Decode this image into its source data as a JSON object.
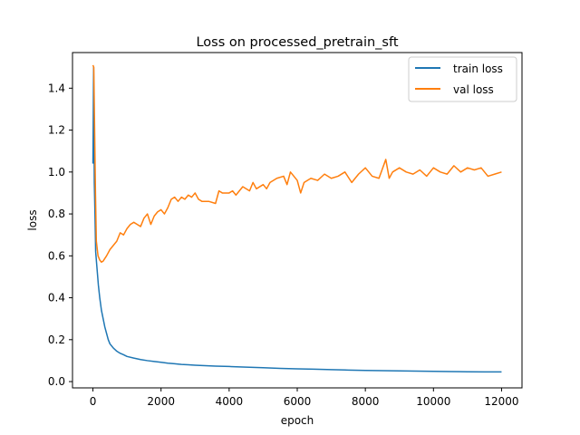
{
  "chart_data": {
    "type": "line",
    "title": "Loss on processed_pretrain_sft",
    "xlabel": "epoch",
    "ylabel": "loss",
    "xlim": [
      -600,
      12600
    ],
    "ylim": [
      -0.03,
      1.57
    ],
    "x_ticks": [
      0,
      2000,
      4000,
      6000,
      8000,
      10000,
      12000
    ],
    "y_ticks": [
      0.0,
      0.2,
      0.4,
      0.6,
      0.8,
      1.0,
      1.2,
      1.4
    ],
    "grid": false,
    "legend_position": "top-right",
    "series": [
      {
        "name": "train loss",
        "color": "#1f77b4",
        "x": [
          0,
          20,
          40,
          60,
          80,
          100,
          130,
          160,
          200,
          250,
          300,
          350,
          400,
          450,
          500,
          600,
          700,
          800,
          900,
          1000,
          1200,
          1400,
          1600,
          1800,
          2000,
          2200,
          2400,
          2600,
          2800,
          3000,
          3300,
          3600,
          4000,
          4500,
          5000,
          5500,
          6000,
          6500,
          7000,
          7500,
          8000,
          8500,
          9000,
          9500,
          10000,
          10500,
          11000,
          11500,
          12000
        ],
        "y": [
          1.04,
          1.5,
          0.95,
          0.8,
          0.62,
          0.58,
          0.52,
          0.46,
          0.4,
          0.34,
          0.3,
          0.26,
          0.23,
          0.2,
          0.18,
          0.16,
          0.145,
          0.135,
          0.128,
          0.12,
          0.112,
          0.105,
          0.1,
          0.096,
          0.092,
          0.088,
          0.085,
          0.082,
          0.08,
          0.078,
          0.076,
          0.074,
          0.072,
          0.069,
          0.066,
          0.063,
          0.061,
          0.059,
          0.057,
          0.055,
          0.053,
          0.052,
          0.051,
          0.05,
          0.049,
          0.048,
          0.047,
          0.046,
          0.046
        ]
      },
      {
        "name": "val loss",
        "color": "#ff7f0e",
        "x": [
          0,
          25,
          50,
          75,
          100,
          150,
          200,
          250,
          300,
          400,
          500,
          600,
          700,
          800,
          900,
          1000,
          1100,
          1200,
          1300,
          1400,
          1500,
          1600,
          1700,
          1800,
          1900,
          2000,
          2100,
          2200,
          2300,
          2400,
          2500,
          2600,
          2700,
          2800,
          2900,
          3000,
          3100,
          3200,
          3400,
          3600,
          3700,
          3800,
          4000,
          4100,
          4200,
          4400,
          4600,
          4700,
          4800,
          5000,
          5100,
          5200,
          5400,
          5600,
          5700,
          5800,
          6000,
          6100,
          6200,
          6400,
          6600,
          6800,
          7000,
          7200,
          7400,
          7600,
          7800,
          8000,
          8200,
          8400,
          8600,
          8700,
          8800,
          9000,
          9200,
          9400,
          9600,
          9800,
          10000,
          10200,
          10400,
          10600,
          10800,
          11000,
          11200,
          11400,
          11600,
          11800,
          12000
        ],
        "y": [
          1.51,
          1.5,
          1.2,
          0.9,
          0.67,
          0.6,
          0.58,
          0.57,
          0.575,
          0.6,
          0.63,
          0.65,
          0.67,
          0.71,
          0.7,
          0.73,
          0.75,
          0.76,
          0.75,
          0.74,
          0.78,
          0.8,
          0.75,
          0.79,
          0.81,
          0.82,
          0.8,
          0.83,
          0.87,
          0.88,
          0.86,
          0.88,
          0.87,
          0.89,
          0.88,
          0.9,
          0.87,
          0.86,
          0.86,
          0.85,
          0.91,
          0.9,
          0.9,
          0.91,
          0.89,
          0.93,
          0.91,
          0.95,
          0.92,
          0.94,
          0.92,
          0.95,
          0.97,
          0.98,
          0.94,
          1.0,
          0.96,
          0.9,
          0.95,
          0.97,
          0.96,
          0.99,
          0.97,
          0.98,
          1.0,
          0.95,
          0.99,
          1.02,
          0.98,
          0.97,
          1.06,
          0.97,
          1.0,
          1.02,
          1.0,
          0.99,
          1.01,
          0.98,
          1.02,
          1.0,
          0.99,
          1.03,
          1.0,
          1.02,
          1.01,
          1.02,
          0.98,
          0.99,
          1.0
        ]
      }
    ]
  }
}
